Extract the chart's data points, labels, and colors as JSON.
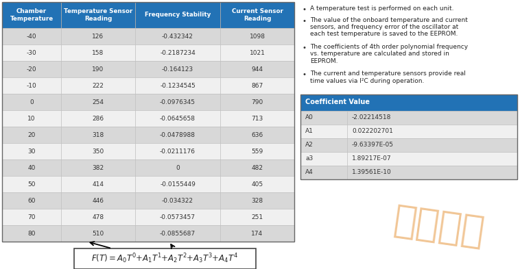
{
  "main_table_headers": [
    "Chamber\nTemperature",
    "Temperature Sensor\nReading",
    "Frequency Stability",
    "Current Sensor\nReading"
  ],
  "main_table_data": [
    [
      "-40",
      "126",
      "-0.432342",
      "1098"
    ],
    [
      "-30",
      "158",
      "-0.2187234",
      "1021"
    ],
    [
      "-20",
      "190",
      "-0.164123",
      "944"
    ],
    [
      "-10",
      "222",
      "-0.1234545",
      "867"
    ],
    [
      "0",
      "254",
      "-0.0976345",
      "790"
    ],
    [
      "10",
      "286",
      "-0.0645658",
      "713"
    ],
    [
      "20",
      "318",
      "-0.0478988",
      "636"
    ],
    [
      "30",
      "350",
      "-0.0211176",
      "559"
    ],
    [
      "40",
      "382",
      "0",
      "482"
    ],
    [
      "50",
      "414",
      "-0.0155449",
      "405"
    ],
    [
      "60",
      "446",
      "-0.034322",
      "328"
    ],
    [
      "70",
      "478",
      "-0.0573457",
      "251"
    ],
    [
      "80",
      "510",
      "-0.0855687",
      "174"
    ]
  ],
  "coeff_table_header": "Coefficient Value",
  "coeff_table_data": [
    [
      "A0",
      "-2.02214518"
    ],
    [
      "A1",
      "0.022202701"
    ],
    [
      "A2",
      "-9.63397E-05"
    ],
    [
      "a3",
      "1.89217E-07"
    ],
    [
      "A4",
      "1.39561E-10"
    ]
  ],
  "bullet_points": [
    "A temperature test is performed on each unit.",
    "The value of the onboard temperature and current\nsensors, and frequency error of the oscillator at\neach test temperature is saved to the EEPROM.",
    "The coefficients of 4th order polynomial frequency\nvs. temperature are calculated and stored in\nEEPROM.",
    "The current and temperature sensors provide real\ntime values via I²C during operation."
  ],
  "header_bg": "#2272B5",
  "header_fg": "#FFFFFF",
  "row_odd_bg": "#D8D8D8",
  "row_even_bg": "#F0F0F0",
  "watermark_color": "#E8A050",
  "watermark_text": "统一电子"
}
